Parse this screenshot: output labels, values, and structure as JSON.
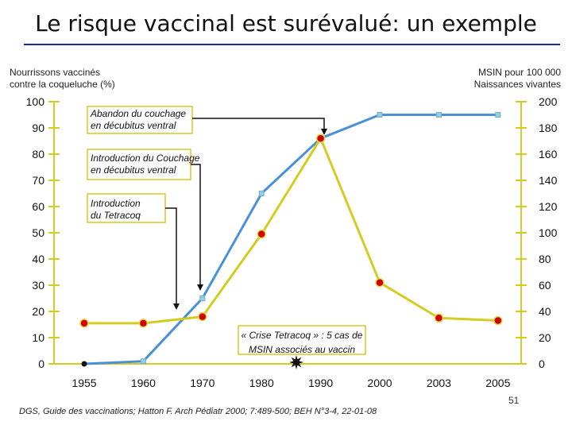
{
  "title": "Le risque vaccinal  est surévalué: un exemple",
  "left_axis_note": [
    "Nourrissons vaccinés",
    "contre la coqueluche (%)"
  ],
  "right_axis_note": [
    "MSIN pour 100 000",
    "Naissances vivantes"
  ],
  "source": "DGS, Guide des vaccinations; Hatton F. Arch Pédiatr 2000; 7:489-500; BEH N°3-4, 22-01-08",
  "page_number": "51",
  "colors": {
    "blue": "#4a90d9",
    "yellow": "#d4cc1f",
    "marker_red": "#d10000",
    "callout_border": "#d4cc1f"
  },
  "chart_data": {
    "type": "line",
    "categories": [
      "1955",
      "1960",
      "1970",
      "1980",
      "1990",
      "2000",
      "2003",
      "2005"
    ],
    "y_left": {
      "ticks": [
        "0",
        "10",
        "20",
        "30",
        "40",
        "50",
        "60",
        "70",
        "80",
        "90",
        "100"
      ],
      "ylim": [
        0,
        100
      ]
    },
    "y_right": {
      "ticks": [
        "0",
        "20",
        "40",
        "60",
        "80",
        "100",
        "120",
        "140",
        "160",
        "180",
        "200"
      ],
      "ylim": [
        0,
        200
      ]
    },
    "series": [
      {
        "axis": "left",
        "color": "#4a90d9",
        "marker": "#8ad0e6",
        "values": [
          0,
          1,
          25,
          65,
          86,
          95,
          95,
          95
        ]
      },
      {
        "axis": "right",
        "color": "#d4cc1f",
        "marker": "#d10000",
        "values": [
          31,
          31,
          36,
          99,
          172,
          62,
          35,
          33
        ]
      }
    ],
    "annotations": [
      {
        "lines": [
          "Abandon du couchage",
          "en décubitus ventral"
        ]
      },
      {
        "lines": [
          "Introduction du Couchage",
          "en décubitus ventral"
        ]
      },
      {
        "lines": [
          "Introduction",
          "du Tetracoq"
        ]
      },
      {
        "lines": [
          "« Crise Tetracoq » : 5 cas de",
          "MSIN associés au vaccin"
        ]
      }
    ]
  }
}
